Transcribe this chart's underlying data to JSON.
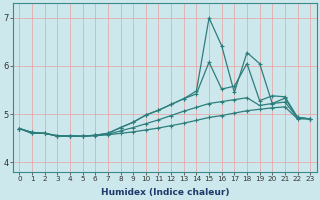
{
  "xlabel": "Humidex (Indice chaleur)",
  "x_values": [
    0,
    1,
    2,
    3,
    4,
    5,
    6,
    7,
    8,
    9,
    10,
    11,
    12,
    13,
    14,
    15,
    16,
    17,
    18,
    19,
    20,
    21,
    22,
    23
  ],
  "l1": [
    4.7,
    4.62,
    4.6,
    4.55,
    4.55,
    4.54,
    4.55,
    4.57,
    4.6,
    4.63,
    4.67,
    4.71,
    4.76,
    4.81,
    4.87,
    4.93,
    4.97,
    5.02,
    5.07,
    5.1,
    5.13,
    5.15,
    4.9,
    4.9
  ],
  "l2": [
    4.7,
    4.62,
    4.6,
    4.55,
    4.55,
    4.54,
    4.56,
    4.58,
    4.65,
    4.72,
    4.8,
    4.88,
    4.97,
    5.06,
    5.14,
    5.22,
    5.26,
    5.3,
    5.34,
    5.18,
    5.22,
    5.25,
    4.92,
    4.9
  ],
  "l3": [
    4.7,
    4.6,
    4.6,
    4.55,
    4.54,
    4.54,
    4.56,
    4.6,
    4.72,
    4.83,
    4.98,
    5.08,
    5.2,
    5.32,
    5.42,
    6.08,
    5.52,
    5.58,
    6.05,
    5.28,
    5.38,
    5.36,
    4.93,
    4.9
  ],
  "l4": [
    4.7,
    4.6,
    4.6,
    4.54,
    4.54,
    4.54,
    4.56,
    4.6,
    4.72,
    4.83,
    4.98,
    5.08,
    5.2,
    5.32,
    5.48,
    7.0,
    6.42,
    5.45,
    6.28,
    6.05,
    5.22,
    5.33,
    4.93,
    4.9
  ],
  "ylim": [
    3.8,
    7.3
  ],
  "yticks": [
    4,
    5,
    6,
    7
  ],
  "xlim": [
    -0.5,
    23.5
  ],
  "bg_color": "#cde8ec",
  "line_color": "#2e7d7d",
  "grid_color": "#e8a0a0",
  "xlabel_color": "#1a3a6a",
  "tick_color": "#333333"
}
